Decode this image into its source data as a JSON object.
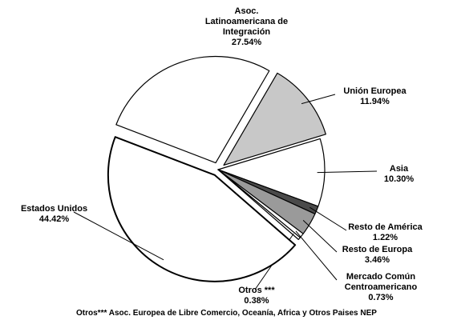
{
  "chart_data": {
    "type": "pie",
    "categories": [
      "Asoc. Latinoamericana de Integración",
      "Unión Europea",
      "Asia",
      "Resto de América",
      "Resto de Europa",
      "Mercado Común Centroamericano",
      "Otros ***",
      "Estados Unidos"
    ],
    "values": [
      27.54,
      11.94,
      10.3,
      1.22,
      3.46,
      0.73,
      0.38,
      44.42
    ],
    "value_labels": [
      "27.54%",
      "11.94%",
      "10.30%",
      "1.22%",
      "3.46%",
      "0.73%",
      "0.38%",
      "44.42%"
    ],
    "colors": [
      "#ffffff",
      "#c8c8c8",
      "#ffffff",
      "#4a4a4a",
      "#9a9a9a",
      "#ffffff",
      "#ffffff",
      "#ffffff"
    ],
    "footnote": "Otros*** Asoc. Europea de Libre Comercio, Oceanía, Africa y Otros Paises NEP"
  }
}
